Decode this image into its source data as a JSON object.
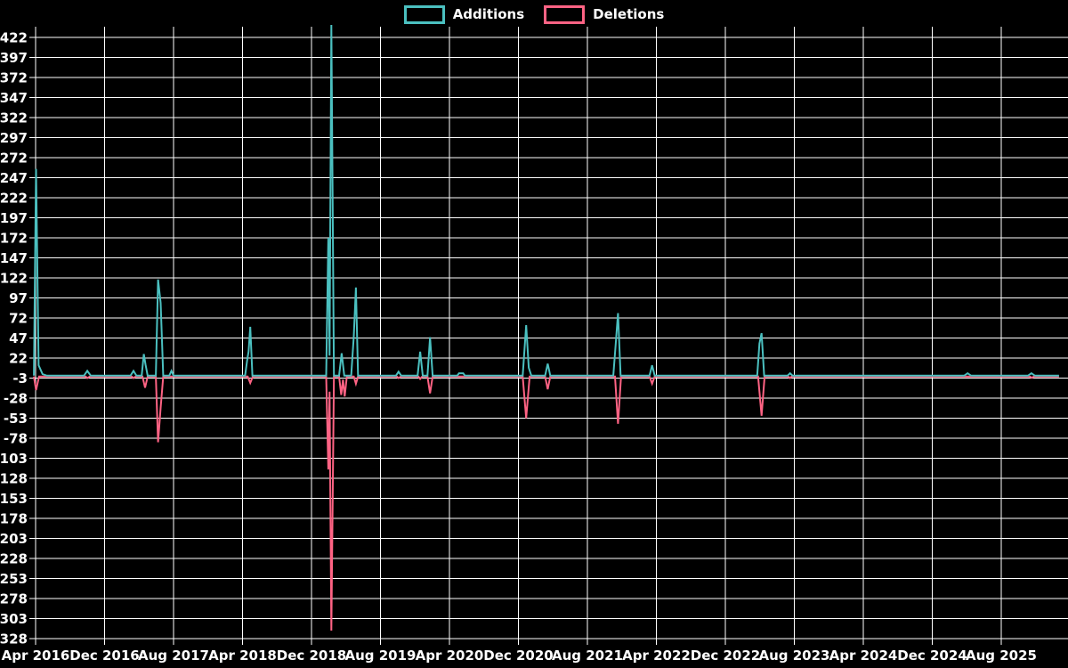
{
  "page": {
    "background": "#000000",
    "grid_color": "#ffffff",
    "text_color": "#ffffff"
  },
  "legend": {
    "items": [
      {
        "label": "Additions",
        "color": "#4bc0c0"
      },
      {
        "label": "Deletions",
        "color": "#ff6384"
      }
    ]
  },
  "chart_data": {
    "type": "line",
    "title": "",
    "xlabel": "",
    "ylabel": "",
    "grid": true,
    "legend_position": "top-center",
    "x_unit": "months since Apr 2016",
    "x_axis": {
      "tick_labels": [
        "Apr 2016",
        "Dec 2016",
        "Aug 2017",
        "Apr 2018",
        "Dec 2018",
        "Aug 2019",
        "Apr 2020",
        "Dec 2020",
        "Aug 2021",
        "Apr 2022",
        "Dec 2022",
        "Aug 2023",
        "Apr 2024",
        "Dec 2024",
        "Aug 2025"
      ],
      "months_per_tick": 8
    },
    "y_axis": {
      "tick_labels": [
        "422",
        "397",
        "372",
        "347",
        "322",
        "297",
        "272",
        "247",
        "222",
        "197",
        "172",
        "147",
        "122",
        "97",
        "72",
        "47",
        "22",
        "-3",
        "-28",
        "-53",
        "-78",
        "-103",
        "-128",
        "-153",
        "-178",
        "-203",
        "-228",
        "-253",
        "-278",
        "-303",
        "-328"
      ],
      "tick_max": 422,
      "tick_min": -328,
      "tick_step": 25
    },
    "ylim": [
      -328,
      422
    ],
    "series": [
      {
        "name": "Additions",
        "color": "#4bc0c0",
        "baseline": 0,
        "points": [
          [
            -0.2,
            0
          ],
          [
            0.05,
            258
          ],
          [
            0.35,
            13
          ],
          [
            0.8,
            2
          ],
          [
            1.3,
            0
          ],
          [
            5.6,
            0
          ],
          [
            6.0,
            6
          ],
          [
            6.4,
            0
          ],
          [
            11.0,
            0
          ],
          [
            11.35,
            6
          ],
          [
            11.7,
            0
          ],
          [
            12.3,
            0
          ],
          [
            12.55,
            27
          ],
          [
            12.75,
            14
          ],
          [
            13.0,
            0
          ],
          [
            13.95,
            0
          ],
          [
            14.2,
            120
          ],
          [
            14.5,
            91
          ],
          [
            14.8,
            0
          ],
          [
            15.5,
            0
          ],
          [
            15.75,
            6
          ],
          [
            16.0,
            0
          ],
          [
            24.3,
            0
          ],
          [
            24.55,
            20
          ],
          [
            24.7,
            30
          ],
          [
            24.9,
            61
          ],
          [
            25.15,
            0
          ],
          [
            33.7,
            0
          ],
          [
            33.95,
            172
          ],
          [
            34.1,
            25
          ],
          [
            34.3,
            440
          ],
          [
            34.6,
            0
          ],
          [
            35.2,
            0
          ],
          [
            35.5,
            28
          ],
          [
            35.8,
            0
          ],
          [
            36.6,
            0
          ],
          [
            36.9,
            49
          ],
          [
            37.15,
            110
          ],
          [
            37.4,
            0
          ],
          [
            41.8,
            0
          ],
          [
            42.1,
            5
          ],
          [
            42.4,
            0
          ],
          [
            44.3,
            0
          ],
          [
            44.6,
            30
          ],
          [
            44.9,
            0
          ],
          [
            45.45,
            0
          ],
          [
            45.75,
            48
          ],
          [
            46.05,
            0
          ],
          [
            48.9,
            0
          ],
          [
            49.1,
            3
          ],
          [
            49.6,
            3
          ],
          [
            49.8,
            0
          ],
          [
            56.5,
            0
          ],
          [
            56.9,
            63
          ],
          [
            57.2,
            10
          ],
          [
            57.5,
            0
          ],
          [
            59.1,
            0
          ],
          [
            59.4,
            15
          ],
          [
            59.7,
            0
          ],
          [
            67.0,
            0
          ],
          [
            67.25,
            35
          ],
          [
            67.55,
            78
          ],
          [
            67.85,
            0
          ],
          [
            71.2,
            0
          ],
          [
            71.5,
            13
          ],
          [
            71.8,
            0
          ],
          [
            83.7,
            0
          ],
          [
            83.95,
            40
          ],
          [
            84.2,
            53
          ],
          [
            84.5,
            0
          ],
          [
            87.2,
            0
          ],
          [
            87.5,
            3
          ],
          [
            87.8,
            0
          ],
          [
            107.7,
            0
          ],
          [
            108.1,
            3
          ],
          [
            108.5,
            0
          ],
          [
            115.1,
            0
          ],
          [
            115.5,
            3
          ],
          [
            115.9,
            0
          ],
          [
            118.7,
            0
          ]
        ]
      },
      {
        "name": "Deletions",
        "color": "#ff6384",
        "baseline": -1,
        "points": [
          [
            -0.2,
            -1
          ],
          [
            0.05,
            -18
          ],
          [
            0.4,
            -1
          ],
          [
            5.8,
            -1
          ],
          [
            6.0,
            -3
          ],
          [
            6.3,
            -1
          ],
          [
            11.15,
            -1
          ],
          [
            11.35,
            -3
          ],
          [
            11.6,
            -1
          ],
          [
            12.4,
            -1
          ],
          [
            12.7,
            -15
          ],
          [
            13.0,
            -1
          ],
          [
            13.95,
            -1
          ],
          [
            14.2,
            -83
          ],
          [
            14.5,
            -40
          ],
          [
            14.8,
            -1
          ],
          [
            24.6,
            -1
          ],
          [
            24.9,
            -9
          ],
          [
            25.2,
            -1
          ],
          [
            33.7,
            -1
          ],
          [
            33.95,
            -117
          ],
          [
            34.1,
            -20
          ],
          [
            34.3,
            -318
          ],
          [
            34.6,
            -1
          ],
          [
            35.2,
            -1
          ],
          [
            35.45,
            -24
          ],
          [
            35.65,
            -5
          ],
          [
            35.85,
            -26
          ],
          [
            36.1,
            -1
          ],
          [
            36.9,
            -1
          ],
          [
            37.15,
            -10
          ],
          [
            37.4,
            -1
          ],
          [
            41.9,
            -1
          ],
          [
            42.1,
            -3
          ],
          [
            42.35,
            -1
          ],
          [
            44.4,
            -1
          ],
          [
            44.6,
            -4
          ],
          [
            44.85,
            -1
          ],
          [
            45.45,
            -1
          ],
          [
            45.75,
            -22
          ],
          [
            46.05,
            -1
          ],
          [
            56.5,
            -1
          ],
          [
            56.9,
            -53
          ],
          [
            57.3,
            -1
          ],
          [
            59.1,
            -1
          ],
          [
            59.4,
            -17
          ],
          [
            59.7,
            -1
          ],
          [
            67.2,
            -1
          ],
          [
            67.55,
            -60
          ],
          [
            67.9,
            -1
          ],
          [
            71.2,
            -1
          ],
          [
            71.5,
            -10
          ],
          [
            71.8,
            -1
          ],
          [
            83.8,
            -1
          ],
          [
            84.2,
            -50
          ],
          [
            84.55,
            -1
          ],
          [
            87.3,
            -1
          ],
          [
            87.5,
            -3
          ],
          [
            87.7,
            -1
          ],
          [
            115.3,
            -1
          ],
          [
            115.55,
            -2.5
          ],
          [
            115.8,
            -1
          ],
          [
            118.7,
            -1
          ]
        ]
      }
    ]
  }
}
